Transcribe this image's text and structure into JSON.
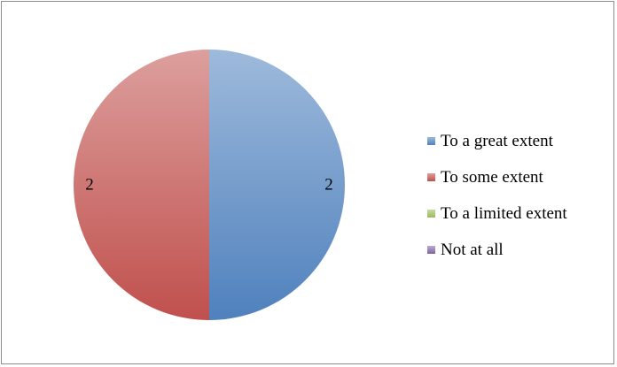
{
  "chart_data": {
    "type": "pie",
    "categories": [
      "To a great extent",
      "To some extent",
      "To a limited extent",
      "Not at all"
    ],
    "values": [
      2,
      2,
      0,
      0
    ],
    "data_labels": [
      "2",
      "2",
      "",
      ""
    ],
    "colors": [
      "#4f81bd",
      "#c0504d",
      "#9bbb59",
      "#8064a2"
    ],
    "legend_position": "right",
    "start_angle_deg": 0,
    "direction": "clockwise"
  }
}
